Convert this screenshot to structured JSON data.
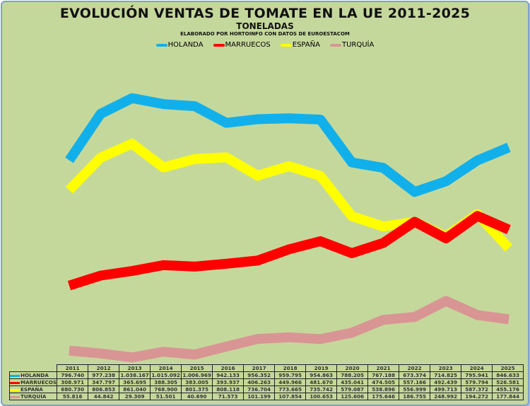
{
  "chart_data": {
    "type": "line",
    "title": "EVOLUCIÓN VENTAS DE TOMATE EN LA UE 2011-2025",
    "subtitle": "TONELADAS",
    "credit": "ELABORADO POR HORTOINFO CON DATOS DE EUROESTACOM",
    "legend_position": "top-center",
    "ylim": [
      0,
      1200
    ],
    "grid": false,
    "categories": [
      "2011",
      "2012",
      "2013",
      "2014",
      "2015",
      "2016",
      "2017",
      "2018",
      "2019",
      "2020",
      "2021",
      "2022",
      "2023",
      "2024",
      "2025"
    ],
    "series": [
      {
        "name": "HOLANDA",
        "color": "#12b0ea",
        "values": [
          796.74,
          977.238,
          1038.167,
          1015.092,
          1006.969,
          942.133,
          956.352,
          959.795,
          954.863,
          788.205,
          767.188,
          673.374,
          714.825,
          795.941,
          846.633
        ],
        "labels": [
          "796.740",
          "977.238",
          "1.038.167",
          "1.015.092",
          "1.006.969",
          "942.133",
          "956.352",
          "959.795",
          "954.863",
          "788.205",
          "767.188",
          "673.374",
          "714.825",
          "795.941",
          "846.633"
        ]
      },
      {
        "name": "MARRUECOS",
        "color": "#ff0000",
        "values": [
          308.971,
          347.797,
          365.695,
          388.305,
          383.005,
          393.937,
          406.263,
          449.966,
          481.67,
          435.041,
          474.505,
          557.166,
          492.439,
          579.794,
          526.581
        ],
        "labels": [
          "308.971",
          "347.797",
          "365.695",
          "388.305",
          "383.005",
          "393.937",
          "406.263",
          "449.966",
          "481.670",
          "435.041",
          "474.505",
          "557.166",
          "492.439",
          "579.794",
          "526.581"
        ]
      },
      {
        "name": "ESPAÑA",
        "color": "#ffff00",
        "values": [
          680.73,
          806.853,
          861.04,
          768.9,
          801.375,
          808.118,
          736.704,
          773.665,
          735.742,
          579.087,
          538.896,
          556.999,
          499.713,
          587.372,
          455.176
        ],
        "labels": [
          "680.730",
          "806.853",
          "861.040",
          "768.900",
          "801.375",
          "808.118",
          "736.704",
          "773.665",
          "735.742",
          "579.087",
          "538.896",
          "556.999",
          "499.713",
          "587.372",
          "455.176"
        ]
      },
      {
        "name": "TURQUÍA",
        "color": "#d99594",
        "values": [
          55.816,
          44.842,
          29.309,
          51.501,
          40.69,
          71.573,
          101.199,
          107.854,
          100.653,
          125.606,
          175.646,
          186.755,
          248.992,
          194.272,
          177.844
        ],
        "labels": [
          "55.816",
          "44.842",
          "29.309",
          "51.501",
          "40.690",
          "71.573",
          "101.199",
          "107.854",
          "100.653",
          "125.606",
          "175.646",
          "186.755",
          "248.992",
          "194.272",
          "177.844"
        ]
      }
    ]
  }
}
